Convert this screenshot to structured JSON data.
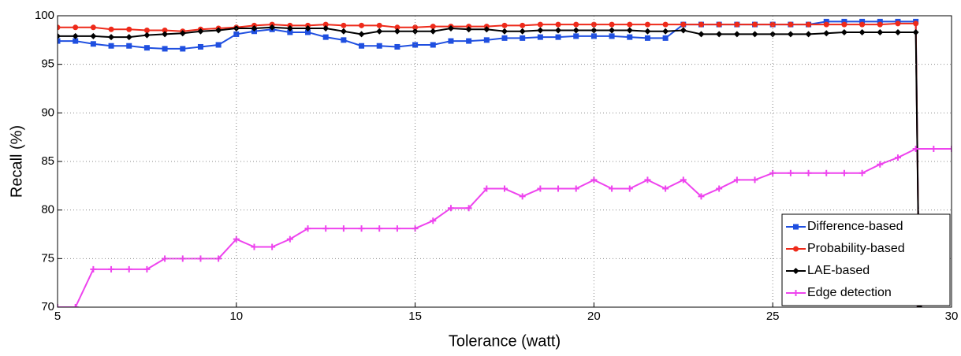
{
  "chart_data": {
    "type": "line",
    "xlabel": "Tolerance (watt)",
    "ylabel": "Recall (%)",
    "x": [
      5,
      5.5,
      6,
      6.5,
      7,
      7.5,
      8,
      8.5,
      9,
      9.5,
      10,
      10.5,
      11,
      11.5,
      12,
      12.5,
      13,
      13.5,
      14,
      14.5,
      15,
      15.5,
      16,
      16.5,
      17,
      17.5,
      18,
      18.5,
      19,
      19.5,
      20,
      20.5,
      21,
      21.5,
      22,
      22.5,
      23,
      23.5,
      24,
      24.5,
      25,
      25.5,
      26,
      26.5,
      27,
      27.5,
      28,
      28.5,
      29,
      29.1
    ],
    "series": [
      {
        "name": "Difference-based",
        "color": "#1f4fe0",
        "marker": "square",
        "values": [
          97.4,
          97.4,
          97.1,
          96.9,
          96.9,
          96.7,
          96.6,
          96.6,
          96.8,
          97.0,
          98.1,
          98.4,
          98.6,
          98.3,
          98.3,
          97.8,
          97.5,
          96.9,
          96.9,
          96.8,
          97.0,
          97.0,
          97.4,
          97.4,
          97.5,
          97.7,
          97.7,
          97.8,
          97.8,
          97.9,
          97.9,
          97.9,
          97.8,
          97.7,
          97.7,
          99.1,
          99.1,
          99.1,
          99.1,
          99.1,
          99.1,
          99.1,
          99.1,
          99.4,
          99.4,
          99.4,
          99.4,
          99.4,
          99.4,
          70
        ]
      },
      {
        "name": "Probability-based",
        "color": "#ee2a1a",
        "marker": "circle",
        "values": [
          98.8,
          98.8,
          98.8,
          98.6,
          98.6,
          98.5,
          98.5,
          98.4,
          98.6,
          98.7,
          98.8,
          99.0,
          99.1,
          99.0,
          99.0,
          99.1,
          99.0,
          99.0,
          99.0,
          98.8,
          98.8,
          98.9,
          98.9,
          98.9,
          98.9,
          99.0,
          99.0,
          99.1,
          99.1,
          99.1,
          99.1,
          99.1,
          99.1,
          99.1,
          99.1,
          99.1,
          99.1,
          99.1,
          99.1,
          99.1,
          99.1,
          99.1,
          99.1,
          99.1,
          99.1,
          99.1,
          99.1,
          99.2,
          99.2,
          70
        ]
      },
      {
        "name": "LAE-based",
        "color": "#000000",
        "marker": "diamond",
        "values": [
          97.9,
          97.9,
          97.9,
          97.8,
          97.8,
          98.0,
          98.1,
          98.2,
          98.4,
          98.5,
          98.7,
          98.7,
          98.8,
          98.7,
          98.7,
          98.7,
          98.4,
          98.1,
          98.4,
          98.4,
          98.4,
          98.4,
          98.7,
          98.6,
          98.6,
          98.4,
          98.4,
          98.5,
          98.5,
          98.5,
          98.5,
          98.5,
          98.5,
          98.4,
          98.4,
          98.5,
          98.1,
          98.1,
          98.1,
          98.1,
          98.1,
          98.1,
          98.1,
          98.2,
          98.3,
          98.3,
          98.3,
          98.3,
          98.3,
          70
        ]
      },
      {
        "name": "Edge detection",
        "color": "#ee44ee",
        "marker": "plus",
        "x": [
          5,
          5.5,
          6,
          6.5,
          7,
          7.5,
          8,
          8.5,
          9,
          9.5,
          10,
          10.5,
          11,
          11.5,
          12,
          12.5,
          13,
          13.5,
          14,
          14.5,
          15,
          15.5,
          16,
          16.5,
          17,
          17.5,
          18,
          18.5,
          19,
          19.5,
          20,
          20.5,
          21,
          21.5,
          22,
          22.5,
          23,
          23.5,
          24,
          24.5,
          25,
          25.5,
          26,
          26.5,
          27,
          27.5,
          28,
          28.5,
          29,
          29.5,
          30
        ],
        "values": [
          70,
          70,
          73.9,
          73.9,
          73.9,
          73.9,
          75,
          75,
          75,
          75,
          77,
          76.2,
          76.2,
          77,
          78.1,
          78.1,
          78.1,
          78.1,
          78.1,
          78.1,
          78.1,
          78.9,
          80.2,
          80.2,
          82.2,
          82.2,
          81.4,
          82.2,
          82.2,
          82.2,
          83.1,
          82.2,
          82.2,
          83.1,
          82.2,
          83.1,
          81.4,
          82.2,
          83.1,
          83.1,
          83.8,
          83.8,
          83.8,
          83.8,
          83.8,
          83.8,
          84.7,
          85.4,
          86.3,
          86.3,
          86.3
        ]
      }
    ],
    "xlim": [
      5,
      30
    ],
    "xticks": [
      5,
      10,
      15,
      20,
      25,
      30
    ],
    "ylim": [
      70,
      100
    ],
    "yticks": [
      70,
      75,
      80,
      85,
      90,
      95,
      100
    ],
    "grid": true,
    "legend": "lower right"
  }
}
